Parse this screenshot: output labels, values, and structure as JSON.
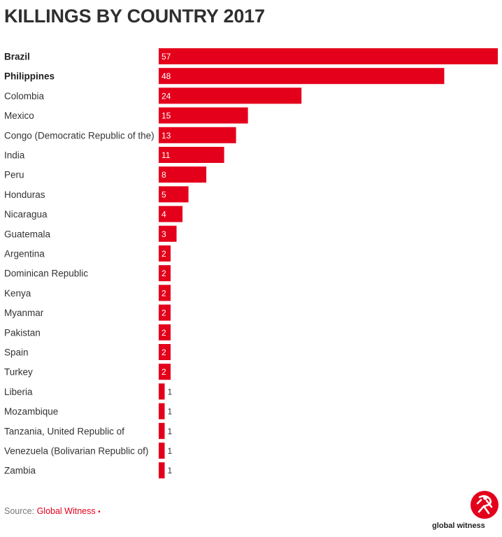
{
  "chart_data": {
    "type": "bar",
    "orientation": "horizontal",
    "title": "KILLINGS BY COUNTRY 2017",
    "categories": [
      "Brazil",
      "Philippines",
      "Colombia",
      "Mexico",
      "Congo (Democratic Republic of the)",
      "India",
      "Peru",
      "Honduras",
      "Nicaragua",
      "Guatemala",
      "Argentina",
      "Dominican Republic",
      "Kenya",
      "Myanmar",
      "Pakistan",
      "Spain",
      "Turkey",
      "Liberia",
      "Mozambique",
      "Tanzania, United Republic of",
      "Venezuela (Bolivarian Republic of)",
      "Zambia"
    ],
    "values": [
      57,
      48,
      24,
      15,
      13,
      11,
      8,
      5,
      4,
      3,
      2,
      2,
      2,
      2,
      2,
      2,
      2,
      1,
      1,
      1,
      1,
      1
    ],
    "highlighted": [
      "Brazil",
      "Philippines"
    ],
    "xlim": [
      0,
      57
    ],
    "xlabel": "",
    "ylabel": "",
    "bar_color": "#e4001b"
  },
  "footer": {
    "source_prefix": "Source: ",
    "source_link": "Global Witness",
    "source_dot": "•",
    "brand_name": "global witness"
  },
  "colors": {
    "accent": "#e4001b",
    "text": "#333333",
    "muted": "#777777"
  }
}
